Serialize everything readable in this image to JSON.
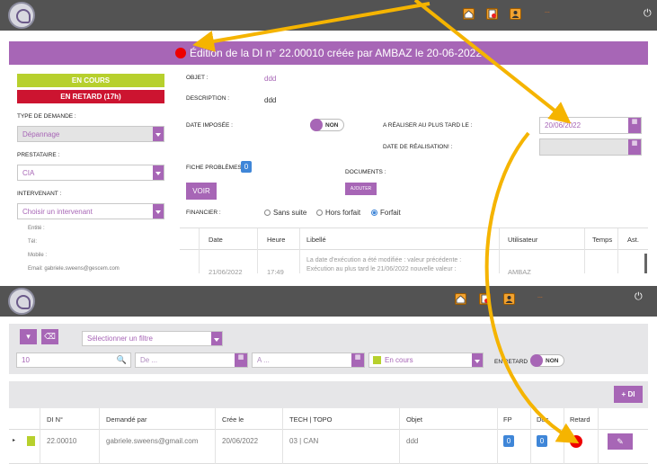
{
  "top_window": {
    "user_label": "...",
    "power_icon": "power-icon",
    "title_text": "Édition de la DI n° 22.00010 créée par AMBAZ le 20-06-2022",
    "status_en_cours": "EN COURS",
    "status_en_retard": "EN RETARD (17h)",
    "type_demande_label": "TYPE DE DEMANDE :",
    "type_demande_value": "Dépannage",
    "prestataire_label": "PRESTATAIRE :",
    "prestataire_value": "CIA",
    "intervenant_label": "INTERVENANT :",
    "intervenant_placeholder": "Choisir un intervenant",
    "entite_label": "Entité :",
    "tel_label": "Tél:",
    "mobile_label": "Mobile :",
    "email_label": "Email: gabriele.sweens@gescem.com",
    "objet_label": "OBJET :",
    "objet_value": "ddd",
    "description_label": "DESCRIPTION :",
    "description_value": "ddd",
    "date_imposee_label": "DATE IMPOSÉE :",
    "date_imposee_toggle": "NON",
    "realiser_label": "A RÉALISER AU PLUS TARD LE :",
    "realiser_value": "20/06/2022",
    "date_realisation_label": "DATE DE RÉALISATION! :",
    "fiche_problemes_label": "FICHE PROBLÈMES :",
    "fiche_problemes_count": "0",
    "documents_label": "DOCUMENTS :",
    "voir_button": "VOIR",
    "ajouter_button": "AJOUTER",
    "financier_label": "FINANCIER :",
    "financier_options": [
      "Sans suite",
      "Hors forfait",
      "Forfait"
    ],
    "financier_selected": "Forfait",
    "history_headers": [
      "Date",
      "Heure",
      "Libellé",
      "Utilisateur",
      "Temps",
      "Ast."
    ],
    "history_row": {
      "date": "21/06/2022",
      "heure": "17:49",
      "libelle_line1": "La date d'exécution a été modifiée : valeur précédente :",
      "libelle_line2": "Exécution au plus tard le 21/06/2022 nouvelle valeur :",
      "utilisateur": "AMBAZ"
    }
  },
  "bottom_window": {
    "user_label": "...",
    "filter_placeholder": "Sélectionner un filtre",
    "page_size": "10",
    "date_from_placeholder": "De ...",
    "date_to_placeholder": "A ...",
    "status_filter": "En cours",
    "en_retard_label": "EN RETARD",
    "en_retard_toggle": "NON",
    "add_di_button": "+ DI",
    "table_headers": [
      "DI N°",
      "Demandé par",
      "Crée le",
      "TECH | TOPO",
      "Objet",
      "FP",
      "Doc.",
      "Retard"
    ],
    "row": {
      "di": "22.00010",
      "demande_par": "gabriele.sweens@gmail.com",
      "cree_le": "20/06/2022",
      "tech_topo": "03 | CAN",
      "objet": "ddd",
      "fp": "0",
      "doc": "0"
    }
  },
  "colors": {
    "purple": "#a766b6",
    "header_grey": "#535353",
    "green": "#b7d02d",
    "red": "#cc1430",
    "arrow": "#f5b400"
  }
}
